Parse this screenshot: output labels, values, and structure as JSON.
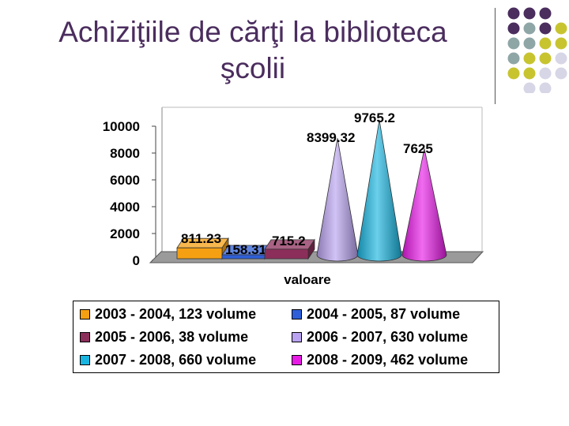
{
  "slide": {
    "title_line1": "Achiziţiile de cărţi la biblioteca",
    "title_line2": "şcolii"
  },
  "decor": {
    "dot_colors": [
      "#4b2d5e",
      "#8fa6a6",
      "#c8c430",
      "#d6d6e6"
    ]
  },
  "chart_data": {
    "type": "bar",
    "mark": "cone",
    "categories": [
      "valoare"
    ],
    "xlabel": "valoare",
    "ylabel": "",
    "ylim": [
      0,
      10000
    ],
    "yticks": [
      0,
      2000,
      4000,
      6000,
      8000,
      10000
    ],
    "series": [
      {
        "name": "2003 - 2004, 123 volume",
        "values": [
          811.23
        ],
        "label": "811.23",
        "color": "#f5a013",
        "shape": "box"
      },
      {
        "name": "2004 - 2005, 87 volume",
        "values": [
          158.31
        ],
        "label": "158.31",
        "color": "#2e5fd8",
        "shape": "box"
      },
      {
        "name": "2005 - 2006, 38 volume",
        "values": [
          715.2
        ],
        "label": "715.2",
        "color": "#8b2e5a",
        "shape": "box"
      },
      {
        "name": "2006 - 2007, 630 volume",
        "values": [
          8399.32
        ],
        "label": "8399.32",
        "color": "#b9a3f0",
        "shape": "cone"
      },
      {
        "name": "2007 - 2008, 660 volume",
        "values": [
          9765.2
        ],
        "label": "9765.2",
        "color": "#19b5e0",
        "shape": "cone"
      },
      {
        "name": "2008 - 2009, 462 volume",
        "values": [
          7625
        ],
        "label": "7625",
        "color": "#e81be6",
        "shape": "cone"
      }
    ],
    "legend": "bottom",
    "grid": false
  }
}
